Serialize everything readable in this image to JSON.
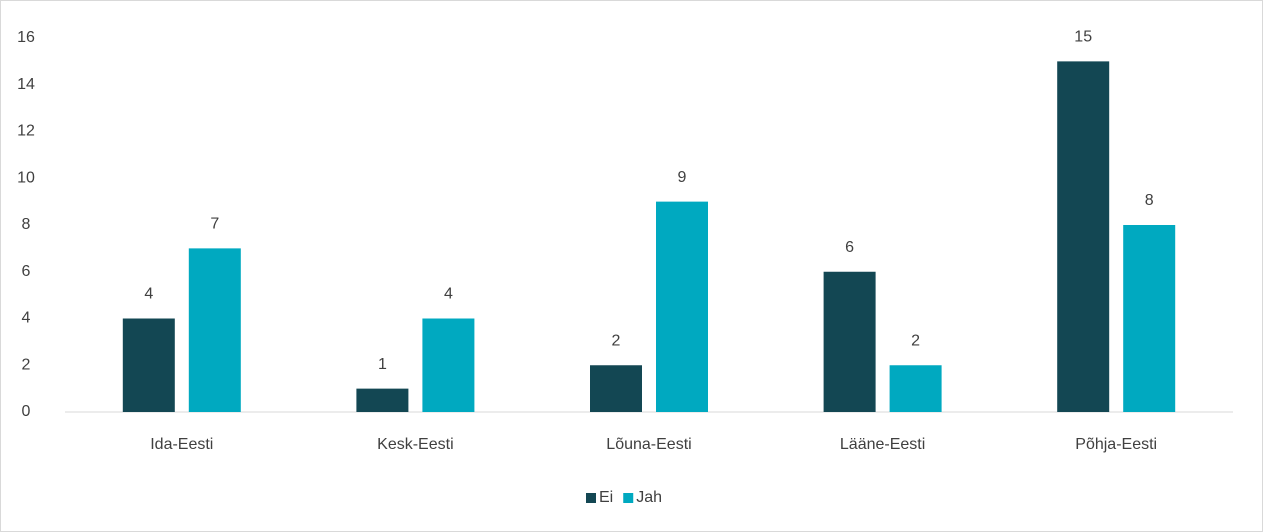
{
  "chart_data": {
    "type": "bar",
    "categories": [
      "Ida-Eesti",
      "Kesk-Eesti",
      "Lõuna-Eesti",
      "Lääne-Eesti",
      "Põhja-Eesti"
    ],
    "series": [
      {
        "name": "Ei",
        "color": "#134753",
        "values": [
          4,
          1,
          2,
          6,
          15
        ]
      },
      {
        "name": "Jah",
        "color": "#00a9c0",
        "values": [
          7,
          4,
          9,
          2,
          8
        ]
      }
    ],
    "ylim": [
      0,
      16
    ],
    "yticks": [
      0,
      2,
      4,
      6,
      8,
      10,
      12,
      14,
      16
    ],
    "grid": false,
    "legend": "bottom",
    "data_labels": true
  }
}
